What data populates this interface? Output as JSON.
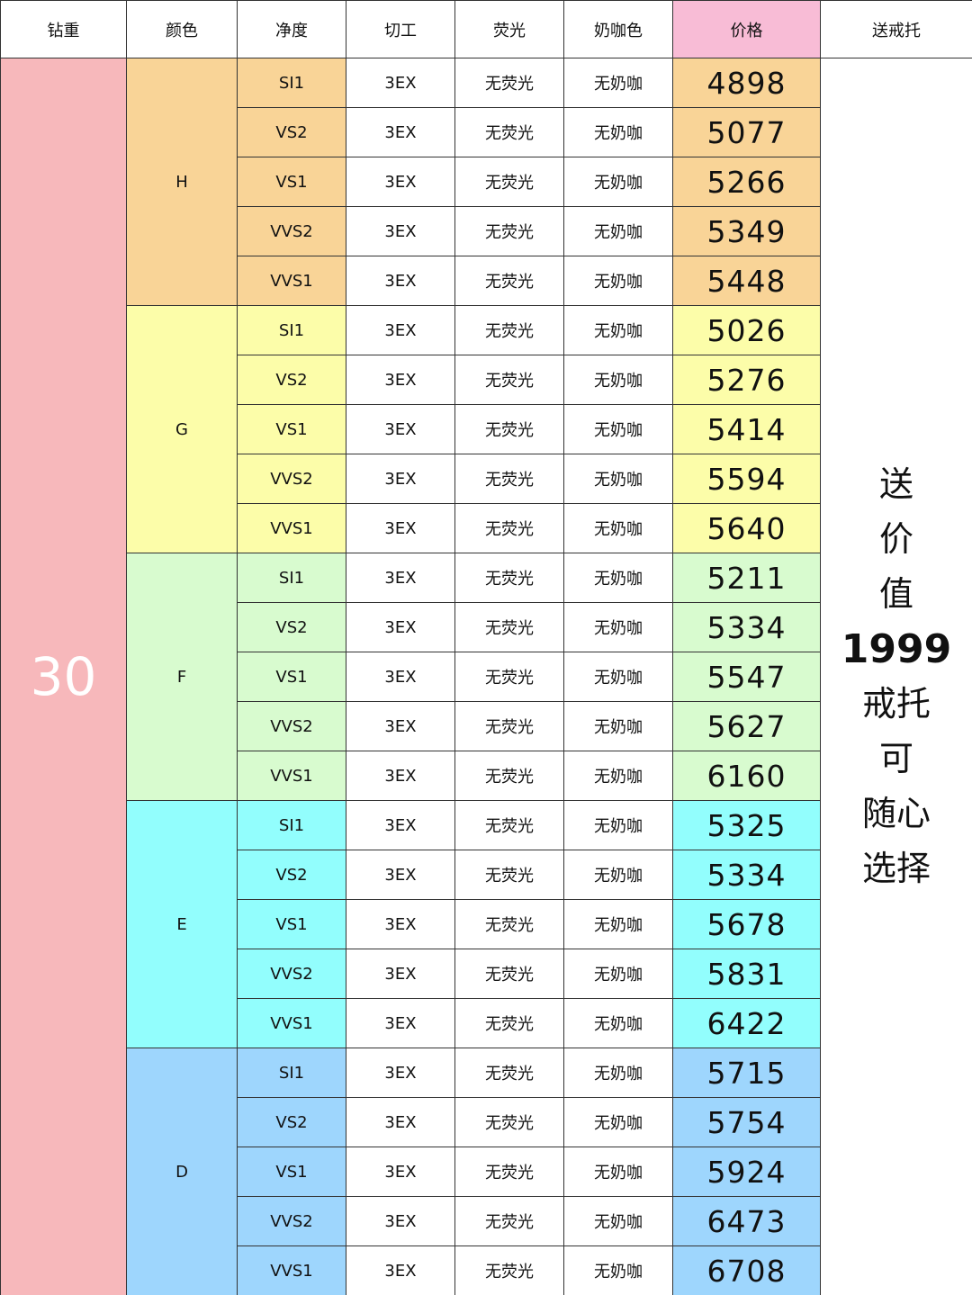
{
  "headers": {
    "carat": "钻重",
    "color": "颜色",
    "clarity": "净度",
    "cut": "切工",
    "fluorescence": "荧光",
    "milky": "奶咖色",
    "price": "价格",
    "gift": "送戒托"
  },
  "carat_value": "30",
  "gift_text": [
    "送",
    "价",
    "值",
    "1999",
    "戒托",
    "可",
    "随心",
    "选择"
  ],
  "colors": {
    "H": "#f9d497",
    "G": "#fcfda9",
    "F": "#d8fbcf",
    "E": "#92fefd",
    "D": "#9ed6fd",
    "carat_bg": "#f7b8bb",
    "price_header_bg": "#f8bcd6"
  },
  "groups": [
    {
      "color": "H",
      "rows": [
        {
          "clarity": "SI1",
          "cut": "3EX",
          "fluorescence": "无荧光",
          "milky": "无奶咖",
          "price": "4898"
        },
        {
          "clarity": "VS2",
          "cut": "3EX",
          "fluorescence": "无荧光",
          "milky": "无奶咖",
          "price": "5077"
        },
        {
          "clarity": "VS1",
          "cut": "3EX",
          "fluorescence": "无荧光",
          "milky": "无奶咖",
          "price": "5266"
        },
        {
          "clarity": "VVS2",
          "cut": "3EX",
          "fluorescence": "无荧光",
          "milky": "无奶咖",
          "price": "5349"
        },
        {
          "clarity": "VVS1",
          "cut": "3EX",
          "fluorescence": "无荧光",
          "milky": "无奶咖",
          "price": "5448"
        }
      ]
    },
    {
      "color": "G",
      "rows": [
        {
          "clarity": "SI1",
          "cut": "3EX",
          "fluorescence": "无荧光",
          "milky": "无奶咖",
          "price": "5026"
        },
        {
          "clarity": "VS2",
          "cut": "3EX",
          "fluorescence": "无荧光",
          "milky": "无奶咖",
          "price": "5276"
        },
        {
          "clarity": "VS1",
          "cut": "3EX",
          "fluorescence": "无荧光",
          "milky": "无奶咖",
          "price": "5414"
        },
        {
          "clarity": "VVS2",
          "cut": "3EX",
          "fluorescence": "无荧光",
          "milky": "无奶咖",
          "price": "5594"
        },
        {
          "clarity": "VVS1",
          "cut": "3EX",
          "fluorescence": "无荧光",
          "milky": "无奶咖",
          "price": "5640"
        }
      ]
    },
    {
      "color": "F",
      "rows": [
        {
          "clarity": "SI1",
          "cut": "3EX",
          "fluorescence": "无荧光",
          "milky": "无奶咖",
          "price": "5211"
        },
        {
          "clarity": "VS2",
          "cut": "3EX",
          "fluorescence": "无荧光",
          "milky": "无奶咖",
          "price": "5334"
        },
        {
          "clarity": "VS1",
          "cut": "3EX",
          "fluorescence": "无荧光",
          "milky": "无奶咖",
          "price": "5547"
        },
        {
          "clarity": "VVS2",
          "cut": "3EX",
          "fluorescence": "无荧光",
          "milky": "无奶咖",
          "price": "5627"
        },
        {
          "clarity": "VVS1",
          "cut": "3EX",
          "fluorescence": "无荧光",
          "milky": "无奶咖",
          "price": "6160"
        }
      ]
    },
    {
      "color": "E",
      "rows": [
        {
          "clarity": "SI1",
          "cut": "3EX",
          "fluorescence": "无荧光",
          "milky": "无奶咖",
          "price": "5325"
        },
        {
          "clarity": "VS2",
          "cut": "3EX",
          "fluorescence": "无荧光",
          "milky": "无奶咖",
          "price": "5334"
        },
        {
          "clarity": "VS1",
          "cut": "3EX",
          "fluorescence": "无荧光",
          "milky": "无奶咖",
          "price": "5678"
        },
        {
          "clarity": "VVS2",
          "cut": "3EX",
          "fluorescence": "无荧光",
          "milky": "无奶咖",
          "price": "5831"
        },
        {
          "clarity": "VVS1",
          "cut": "3EX",
          "fluorescence": "无荧光",
          "milky": "无奶咖",
          "price": "6422"
        }
      ]
    },
    {
      "color": "D",
      "rows": [
        {
          "clarity": "SI1",
          "cut": "3EX",
          "fluorescence": "无荧光",
          "milky": "无奶咖",
          "price": "5715"
        },
        {
          "clarity": "VS2",
          "cut": "3EX",
          "fluorescence": "无荧光",
          "milky": "无奶咖",
          "price": "5754"
        },
        {
          "clarity": "VS1",
          "cut": "3EX",
          "fluorescence": "无荧光",
          "milky": "无奶咖",
          "price": "5924"
        },
        {
          "clarity": "VVS2",
          "cut": "3EX",
          "fluorescence": "无荧光",
          "milky": "无奶咖",
          "price": "6473"
        },
        {
          "clarity": "VVS1",
          "cut": "3EX",
          "fluorescence": "无荧光",
          "milky": "无奶咖",
          "price": "6708"
        }
      ]
    }
  ]
}
